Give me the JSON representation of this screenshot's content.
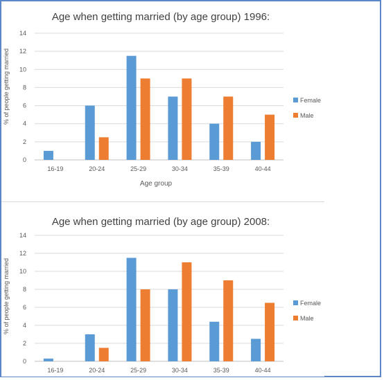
{
  "chart_data": [
    {
      "type": "bar",
      "title": "Age when getting married (by age group) 1996:",
      "xlabel": "Age group",
      "ylabel": "% of people getting married",
      "categories": [
        "16-19",
        "20-24",
        "25-29",
        "30-34",
        "35-39",
        "40-44"
      ],
      "series": [
        {
          "name": "Female",
          "color": "#5b9bd5",
          "values": [
            1,
            6,
            11.5,
            7,
            4,
            2
          ]
        },
        {
          "name": "Male",
          "color": "#ed7d31",
          "values": [
            0,
            2.5,
            9,
            9,
            7,
            5
          ]
        }
      ],
      "ylim": [
        0,
        14
      ],
      "yticks": [
        0,
        2,
        4,
        6,
        8,
        10,
        12,
        14
      ],
      "grid": true,
      "legend": "right"
    },
    {
      "type": "bar",
      "title": "Age when getting married (by age group) 2008:",
      "xlabel": "",
      "ylabel": "% of people getting married",
      "categories": [
        "16-19",
        "20-24",
        "25-29",
        "30-34",
        "35-39",
        "40-44"
      ],
      "series": [
        {
          "name": "Female",
          "color": "#5b9bd5",
          "values": [
            0.3,
            3,
            11.5,
            8,
            4.4,
            2.5
          ]
        },
        {
          "name": "Male",
          "color": "#ed7d31",
          "values": [
            0,
            1.5,
            8,
            11,
            9,
            6.5
          ]
        }
      ],
      "ylim": [
        0,
        14
      ],
      "yticks": [
        0,
        2,
        4,
        6,
        8,
        10,
        12,
        14
      ],
      "grid": true,
      "legend": "right"
    }
  ]
}
